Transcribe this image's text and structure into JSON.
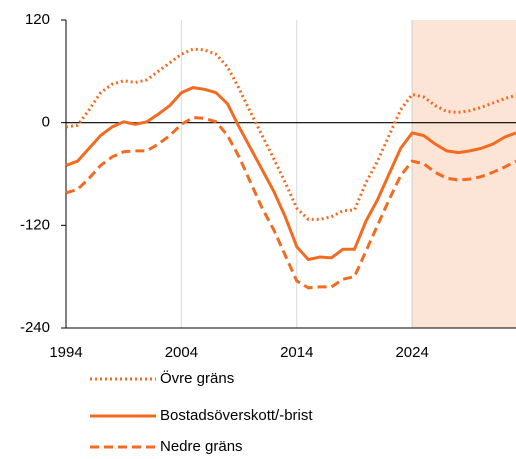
{
  "chart_data": {
    "type": "line",
    "x": [
      1994,
      1995,
      1996,
      1997,
      1998,
      1999,
      2000,
      2001,
      2002,
      2003,
      2004,
      2005,
      2006,
      2007,
      2008,
      2009,
      2010,
      2011,
      2012,
      2013,
      2014,
      2015,
      2016,
      2017,
      2018,
      2019,
      2020,
      2021,
      2022,
      2023,
      2024,
      2025,
      2026,
      2027,
      2028,
      2029,
      2030,
      2031,
      2032,
      2033
    ],
    "series": [
      {
        "name": "Övre gräns",
        "color": "#f26b21",
        "dash": "dotted",
        "values": [
          -5,
          -3,
          15,
          35,
          45,
          49,
          47,
          50,
          60,
          70,
          80,
          86,
          85,
          80,
          65,
          40,
          12,
          -15,
          -42,
          -70,
          -100,
          -113,
          -113,
          -110,
          -103,
          -102,
          -70,
          -45,
          -15,
          15,
          33,
          30,
          20,
          13,
          12,
          14,
          18,
          23,
          28,
          32
        ]
      },
      {
        "name": "Bostadsöverskott/-brist",
        "color": "#f26b21",
        "dash": "solid",
        "values": [
          -50,
          -45,
          -30,
          -15,
          -5,
          1,
          -2,
          1,
          10,
          20,
          35,
          41,
          39,
          35,
          22,
          -5,
          -30,
          -55,
          -80,
          -110,
          -145,
          -160,
          -157,
          -158,
          -148,
          -148,
          -115,
          -90,
          -60,
          -30,
          -12,
          -15,
          -25,
          -33,
          -35,
          -33,
          -30,
          -25,
          -17,
          -12
        ]
      },
      {
        "name": "Nedre gräns",
        "color": "#f26b21",
        "dash": "dashed",
        "values": [
          -82,
          -78,
          -65,
          -50,
          -40,
          -34,
          -33,
          -33,
          -25,
          -15,
          -2,
          6,
          5,
          1,
          -15,
          -40,
          -70,
          -100,
          -125,
          -155,
          -185,
          -193,
          -192,
          -192,
          -183,
          -180,
          -150,
          -120,
          -90,
          -62,
          -45,
          -48,
          -58,
          -65,
          -67,
          -66,
          -63,
          -58,
          -52,
          -45
        ]
      }
    ],
    "xlim": [
      1994,
      2033
    ],
    "xticks": [
      1994,
      2004,
      2014,
      2024
    ],
    "ylim": [
      -240,
      120
    ],
    "yticks": [
      -240,
      -120,
      0,
      120
    ],
    "shaded_region": [
      2024,
      2033
    ],
    "shaded_color": "#fce4d6",
    "grid": true,
    "legend": "bottom"
  }
}
